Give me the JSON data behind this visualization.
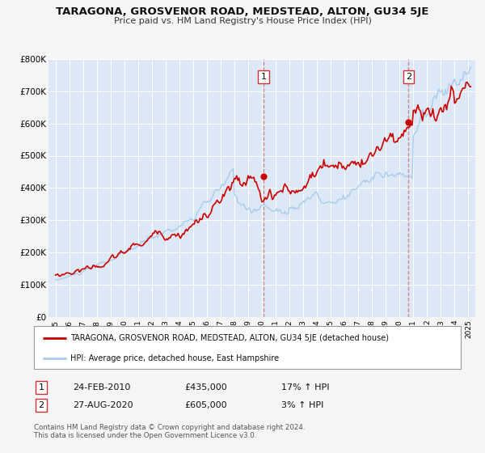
{
  "title": "TARAGONA, GROSVENOR ROAD, MEDSTEAD, ALTON, GU34 5JE",
  "subtitle": "Price paid vs. HM Land Registry's House Price Index (HPI)",
  "ylim": [
    0,
    800000
  ],
  "yticks": [
    0,
    100000,
    200000,
    300000,
    400000,
    500000,
    600000,
    700000,
    800000
  ],
  "ytick_labels": [
    "£0",
    "£100K",
    "£200K",
    "£300K",
    "£400K",
    "£500K",
    "£600K",
    "£700K",
    "£800K"
  ],
  "xlim_start": 1994.5,
  "xlim_end": 2025.5,
  "xticks": [
    1995,
    1996,
    1997,
    1998,
    1999,
    2000,
    2001,
    2002,
    2003,
    2004,
    2005,
    2006,
    2007,
    2008,
    2009,
    2010,
    2011,
    2012,
    2013,
    2014,
    2015,
    2016,
    2017,
    2018,
    2019,
    2020,
    2021,
    2022,
    2023,
    2024,
    2025
  ],
  "sale1_x": 2010.12,
  "sale1_y": 435000,
  "sale2_x": 2020.65,
  "sale2_y": 605000,
  "line_color_red": "#cc0000",
  "line_color_blue": "#aaccee",
  "background_fill": "#dce8f5",
  "grid_color": "#ffffff",
  "legend_label_red": "TARAGONA, GROSVENOR ROAD, MEDSTEAD, ALTON, GU34 5JE (detached house)",
  "legend_label_blue": "HPI: Average price, detached house, East Hampshire",
  "footer": "Contains HM Land Registry data © Crown copyright and database right 2024.\nThis data is licensed under the Open Government Licence v3.0."
}
